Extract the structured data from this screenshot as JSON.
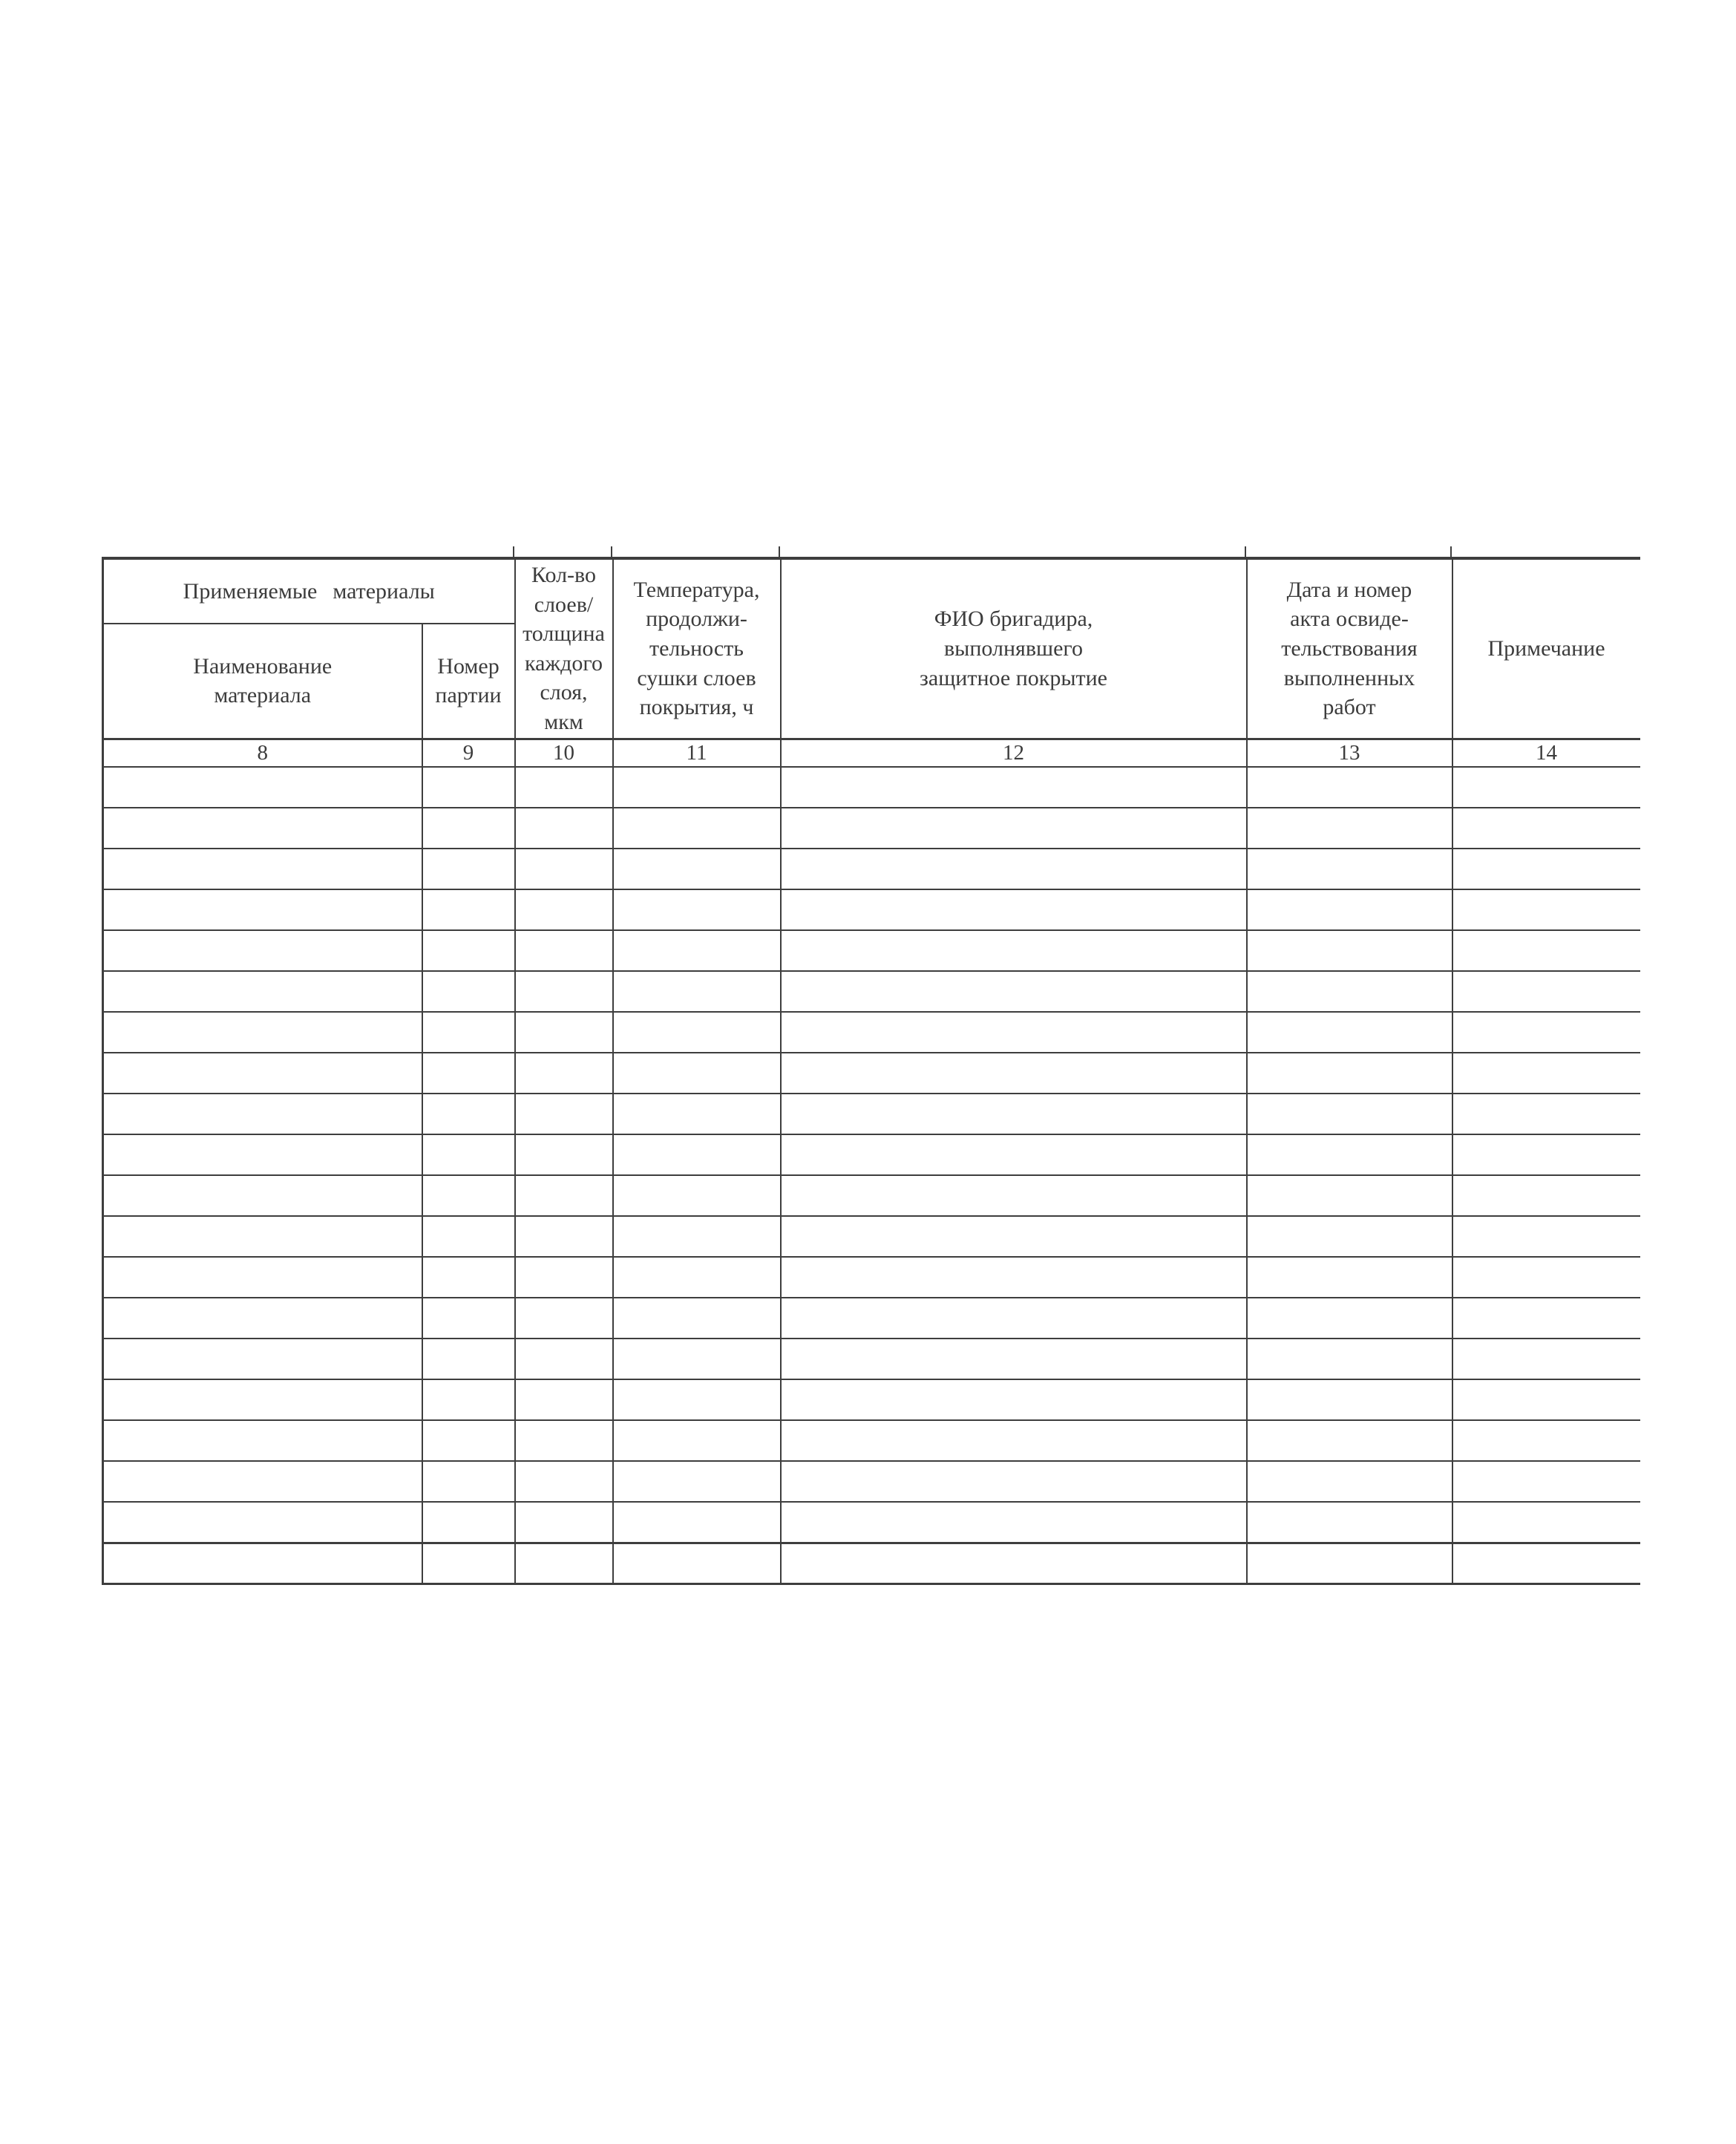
{
  "table": {
    "group_header": "Применяемые материалы",
    "columns": [
      {
        "number": "8",
        "header": "Наименование\nматериала"
      },
      {
        "number": "9",
        "header": "Номер\nпартии"
      },
      {
        "number": "10",
        "header": "Кол-во\nслоев/\nтолщина\nкаждого\nслоя,\nмкм"
      },
      {
        "number": "11",
        "header": "Температура,\nпродолжи-\nтельность\nсушки слоев\nпокрытия, ч"
      },
      {
        "number": "12",
        "header": "ФИО бригадира,\nвыполнявшего\nзащитное покрытие"
      },
      {
        "number": "13",
        "header": "Дата и номер\nакта освиде-\nтельствования\nвыполненных\nработ"
      },
      {
        "number": "14",
        "header": "Примечание"
      }
    ],
    "empty_rows": 20
  },
  "colors": {
    "grid_line": "#3e3e3e",
    "text": "#3c3c3c",
    "background": "#ffffff"
  }
}
